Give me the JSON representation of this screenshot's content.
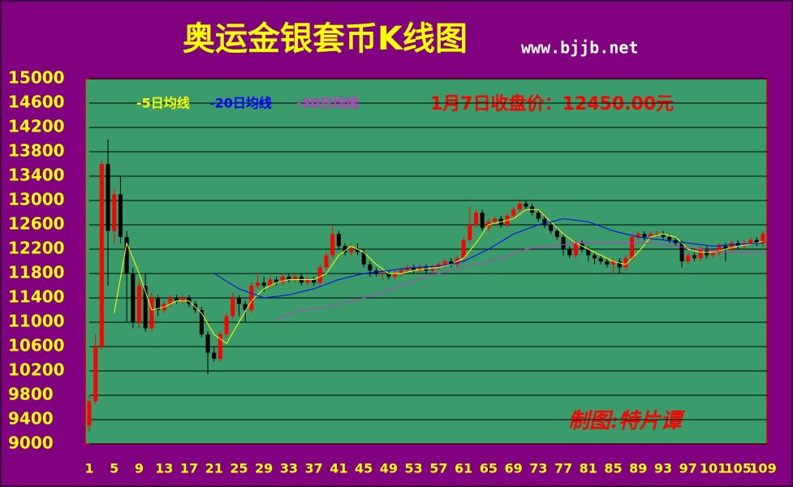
{
  "chart_data": {
    "type": "candlestick",
    "title": "奥运金银套币K线图",
    "subtitle": "www.bjjb.net",
    "annotations": [
      "1月7日收盘价：12450.00元",
      "制图:特片谭"
    ],
    "up_color": "#ff0000",
    "down_color": "#000000",
    "ylim": [
      9000,
      15000
    ],
    "yticks": [
      9000,
      9400,
      9800,
      10200,
      10600,
      11000,
      11400,
      11800,
      12200,
      12600,
      13000,
      13400,
      13800,
      14200,
      14600,
      15000
    ],
    "xticks": [
      1,
      5,
      9,
      13,
      17,
      21,
      25,
      29,
      33,
      37,
      41,
      45,
      49,
      53,
      57,
      61,
      65,
      69,
      73,
      77,
      81,
      85,
      89,
      93,
      97,
      101,
      105,
      109
    ],
    "grid": true,
    "x": [
      1,
      2,
      3,
      4,
      5,
      6,
      7,
      8,
      9,
      10,
      11,
      12,
      13,
      14,
      15,
      16,
      17,
      18,
      19,
      20,
      21,
      22,
      23,
      24,
      25,
      26,
      27,
      28,
      29,
      30,
      31,
      32,
      33,
      34,
      35,
      36,
      37,
      38,
      39,
      40,
      41,
      42,
      43,
      44,
      45,
      46,
      47,
      48,
      49,
      50,
      51,
      52,
      53,
      54,
      55,
      56,
      57,
      58,
      59,
      60,
      61,
      62,
      63,
      64,
      65,
      66,
      67,
      68,
      69,
      70,
      71,
      72,
      73,
      74,
      75,
      76,
      77,
      78,
      79,
      80,
      81,
      82,
      83,
      84,
      85,
      86,
      87,
      88,
      89,
      90,
      91,
      92,
      93,
      94,
      95,
      96,
      97,
      98,
      99,
      100,
      101,
      102,
      103,
      104,
      105,
      106,
      107,
      108,
      109
    ],
    "open": [
      9300,
      9700,
      10600,
      13600,
      12500,
      13100,
      12400,
      11800,
      11000,
      11600,
      10900,
      11400,
      11200,
      11300,
      11400,
      11350,
      11400,
      11300,
      11200,
      10800,
      10500,
      10400,
      10800,
      11100,
      11400,
      11300,
      11200,
      11600,
      11650,
      11600,
      11700,
      11650,
      11750,
      11700,
      11750,
      11650,
      11700,
      11650,
      11900,
      12100,
      12450,
      12250,
      12150,
      12200,
      12150,
      11950,
      11850,
      11800,
      11800,
      11750,
      11800,
      11850,
      11900,
      11850,
      11900,
      11850,
      11900,
      11950,
      12000,
      11950,
      12050,
      12350,
      12600,
      12800,
      12550,
      12650,
      12700,
      12600,
      12750,
      12850,
      12950,
      12900,
      12800,
      12700,
      12600,
      12500,
      12400,
      12200,
      12100,
      12300,
      12200,
      12100,
      12050,
      12000,
      11950,
      12000,
      11900,
      12050,
      12400,
      12450,
      12400,
      12450,
      12450,
      12400,
      12350,
      12300,
      12000,
      12100,
      12050,
      12200,
      12100,
      12150,
      12250,
      12200,
      12300,
      12250,
      12300,
      12350,
      12300
    ],
    "high": [
      9800,
      10800,
      13650,
      14000,
      13200,
      13400,
      12500,
      11900,
      11700,
      11800,
      11500,
      11450,
      11350,
      11450,
      11450,
      11450,
      11450,
      11350,
      11250,
      10850,
      10600,
      10850,
      11150,
      11500,
      11450,
      11350,
      11650,
      11800,
      11750,
      11750,
      11750,
      11800,
      11800,
      11800,
      11800,
      11750,
      11750,
      11950,
      12150,
      12600,
      12500,
      12300,
      12300,
      12300,
      12200,
      12000,
      11900,
      11850,
      11850,
      11850,
      11900,
      11950,
      11950,
      11950,
      11950,
      11950,
      12000,
      12050,
      12050,
      12100,
      12400,
      12900,
      12850,
      12850,
      12700,
      12750,
      12750,
      12800,
      12900,
      13000,
      13000,
      12950,
      12850,
      12750,
      12650,
      12550,
      12450,
      12250,
      12350,
      12350,
      12250,
      12150,
      12100,
      12050,
      12050,
      12050,
      12100,
      12450,
      12500,
      12500,
      12500,
      12500,
      12500,
      12450,
      12400,
      12350,
      12150,
      12150,
      12250,
      12250,
      12200,
      12300,
      12300,
      12350,
      12350,
      12350,
      12400,
      12400,
      12500
    ],
    "low": [
      9200,
      9650,
      10550,
      11600,
      12300,
      12300,
      11000,
      10900,
      10900,
      10850,
      10850,
      11100,
      11150,
      11250,
      11300,
      11300,
      11250,
      11150,
      10750,
      10150,
      10350,
      10350,
      10750,
      11050,
      11100,
      11000,
      11150,
      11550,
      11500,
      11550,
      11600,
      11600,
      11650,
      11650,
      11600,
      11600,
      11600,
      11600,
      11850,
      12050,
      12200,
      12100,
      12100,
      12100,
      11900,
      11750,
      11750,
      11700,
      11700,
      11700,
      11750,
      11800,
      11800,
      11800,
      11800,
      11800,
      11850,
      11900,
      11900,
      11900,
      12000,
      12300,
      12550,
      12500,
      12500,
      12600,
      12550,
      12550,
      12700,
      12800,
      12850,
      12750,
      12650,
      12550,
      12450,
      12350,
      12100,
      12050,
      12050,
      12150,
      12000,
      11950,
      11950,
      11900,
      11800,
      11800,
      11850,
      12000,
      12350,
      12350,
      12350,
      12400,
      12350,
      12300,
      12250,
      11900,
      11950,
      12000,
      12000,
      12050,
      12050,
      12100,
      12000,
      12150,
      12200,
      12200,
      12250,
      12250,
      12250
    ],
    "close": [
      9700,
      10600,
      13600,
      12500,
      13100,
      12400,
      11800,
      11000,
      11600,
      10900,
      11400,
      11200,
      11300,
      11400,
      11350,
      11400,
      11300,
      11200,
      10800,
      10500,
      10400,
      10800,
      11100,
      11400,
      11300,
      11200,
      11600,
      11650,
      11600,
      11700,
      11650,
      11750,
      11700,
      11750,
      11650,
      11700,
      11650,
      11900,
      12100,
      12450,
      12250,
      12150,
      12200,
      12150,
      11950,
      11850,
      11800,
      11800,
      11750,
      11800,
      11850,
      11900,
      11850,
      11900,
      11850,
      11900,
      11950,
      12000,
      11950,
      12050,
      12350,
      12600,
      12800,
      12550,
      12650,
      12700,
      12600,
      12750,
      12850,
      12950,
      12900,
      12800,
      12700,
      12600,
      12500,
      12400,
      12200,
      12100,
      12300,
      12200,
      12100,
      12050,
      12000,
      11950,
      12000,
      11900,
      12050,
      12400,
      12450,
      12400,
      12450,
      12450,
      12400,
      12350,
      12300,
      12000,
      12100,
      12050,
      12200,
      12100,
      12150,
      12250,
      12200,
      12300,
      12250,
      12300,
      12350,
      12300,
      12450
    ],
    "series": [
      {
        "name": "-5日均线",
        "color": "#ffff00",
        "x": [
          5,
          7,
          9,
          11,
          13,
          15,
          17,
          19,
          21,
          23,
          25,
          27,
          29,
          31,
          33,
          35,
          37,
          39,
          41,
          43,
          45,
          47,
          49,
          51,
          53,
          55,
          57,
          59,
          61,
          63,
          65,
          67,
          69,
          71,
          73,
          75,
          77,
          79,
          81,
          83,
          85,
          87,
          89,
          91,
          93,
          95,
          97,
          99,
          101,
          103,
          105,
          107,
          109
        ],
        "values": [
          11150,
          12300,
          11800,
          11200,
          11250,
          11350,
          11350,
          11150,
          10800,
          10650,
          11000,
          11350,
          11550,
          11650,
          11700,
          11700,
          11700,
          11800,
          12100,
          12250,
          12150,
          11950,
          11800,
          11800,
          11850,
          11880,
          11900,
          11950,
          12050,
          12300,
          12600,
          12650,
          12700,
          12850,
          12850,
          12650,
          12450,
          12300,
          12200,
          12100,
          12000,
          11950,
          12150,
          12400,
          12450,
          12400,
          12200,
          12150,
          12150,
          12200,
          12250,
          12280,
          12330
        ]
      },
      {
        "name": "-20日均线",
        "color": "#0000ff",
        "x": [
          21,
          25,
          29,
          33,
          37,
          41,
          45,
          49,
          53,
          57,
          61,
          65,
          69,
          73,
          77,
          81,
          85,
          89,
          93,
          97,
          101,
          105,
          109
        ],
        "values": [
          11800,
          11550,
          11400,
          11450,
          11550,
          11700,
          11800,
          11850,
          11900,
          11920,
          12000,
          12200,
          12450,
          12600,
          12700,
          12650,
          12500,
          12400,
          12350,
          12300,
          12250,
          12280,
          12300
        ]
      },
      {
        "name": "-30日均线",
        "color": "#cc33cc",
        "x": [
          31,
          35,
          39,
          43,
          47,
          51,
          55,
          59,
          63,
          67,
          71,
          75,
          79,
          83,
          87,
          91,
          95,
          99,
          103,
          107,
          109
        ],
        "values": [
          11050,
          11200,
          11250,
          11350,
          11450,
          11600,
          11750,
          11850,
          11950,
          12050,
          12200,
          12250,
          12300,
          12300,
          12300,
          12300,
          12250,
          12200,
          12150,
          12150,
          12150
        ]
      }
    ]
  }
}
